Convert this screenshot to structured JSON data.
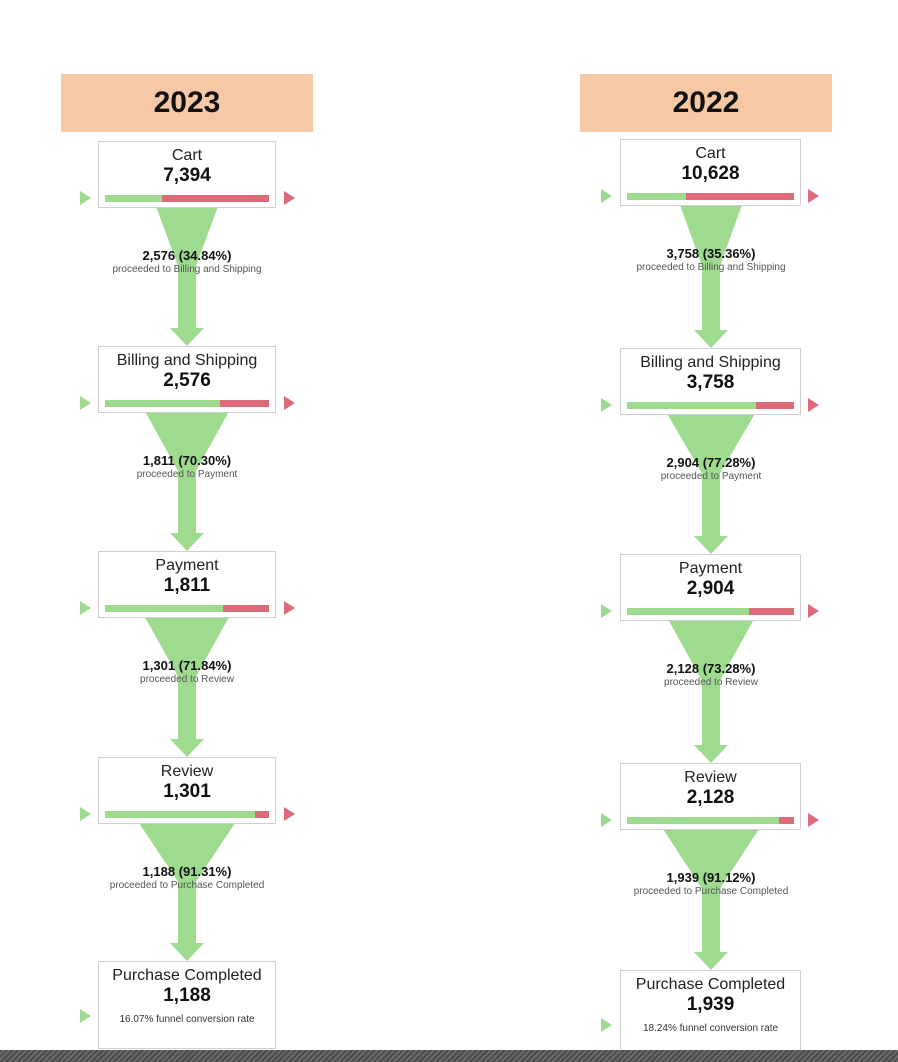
{
  "chart_data": [
    {
      "type": "funnel",
      "title": "2023",
      "stages": [
        {
          "name": "Cart",
          "value": 7394,
          "value_label": "7,394"
        },
        {
          "name": "Billing and Shipping",
          "value": 2576,
          "value_label": "2,576"
        },
        {
          "name": "Payment",
          "value": 1811,
          "value_label": "1,811"
        },
        {
          "name": "Review",
          "value": 1301,
          "value_label": "1,301"
        },
        {
          "name": "Purchase Completed",
          "value": 1188,
          "value_label": "1,188"
        }
      ],
      "transitions": [
        {
          "count": 2576,
          "percent": 34.84,
          "label": "2,576 (34.84%)",
          "desc": "proceeded to Billing and Shipping"
        },
        {
          "count": 1811,
          "percent": 70.3,
          "label": "1,811 (70.30%)",
          "desc": "proceeded to Payment"
        },
        {
          "count": 1301,
          "percent": 71.84,
          "label": "1,301 (71.84%)",
          "desc": "proceeded to Review"
        },
        {
          "count": 1188,
          "percent": 91.31,
          "label": "1,188 (91.31%)",
          "desc": "proceeded to Purchase Completed"
        }
      ],
      "conversion_rate": 16.07,
      "conversion_note": "16.07% funnel conversion rate"
    },
    {
      "type": "funnel",
      "title": "2022",
      "stages": [
        {
          "name": "Cart",
          "value": 10628,
          "value_label": "10,628"
        },
        {
          "name": "Billing and Shipping",
          "value": 3758,
          "value_label": "3,758"
        },
        {
          "name": "Payment",
          "value": 2904,
          "value_label": "2,904"
        },
        {
          "name": "Review",
          "value": 2128,
          "value_label": "2,128"
        },
        {
          "name": "Purchase Completed",
          "value": 1939,
          "value_label": "1,939"
        }
      ],
      "transitions": [
        {
          "count": 3758,
          "percent": 35.36,
          "label": "3,758 (35.36%)",
          "desc": "proceeded to Billing and Shipping"
        },
        {
          "count": 2904,
          "percent": 77.28,
          "label": "2,904 (77.28%)",
          "desc": "proceeded to Payment"
        },
        {
          "count": 2128,
          "percent": 73.28,
          "label": "2,128 (73.28%)",
          "desc": "proceeded to Review"
        },
        {
          "count": 1939,
          "percent": 91.12,
          "label": "1,939 (91.12%)",
          "desc": "proceeded to Purchase Completed"
        }
      ],
      "conversion_rate": 18.24,
      "conversion_note": "18.24% funnel conversion rate"
    }
  ],
  "colors": {
    "header_bg": "#f7c8a6",
    "proceed_green": "#9edb8f",
    "dropoff_red": "#dd6a78",
    "box_border": "#cfcfcf"
  },
  "icons": {
    "entry_marker": "play-triangle-green-icon",
    "exit_marker": "play-triangle-red-icon",
    "flow_arrow": "funnel-down-arrow-icon"
  }
}
